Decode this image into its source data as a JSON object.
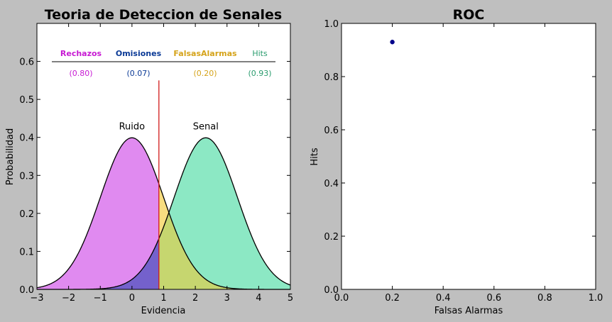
{
  "chart_data": [
    {
      "type": "area",
      "title": "Teoria de Deteccion de Senales",
      "xlabel": "Evidencia",
      "ylabel": "Probabilidad",
      "xlim": [
        -3,
        5
      ],
      "ylim": [
        0,
        0.7
      ],
      "xticks": [
        "−3",
        "−2",
        "−1",
        "0",
        "1",
        "2",
        "3",
        "4",
        "5"
      ],
      "yticks": [
        "0.0",
        "0.1",
        "0.2",
        "0.3",
        "0.4",
        "0.5",
        "0.6"
      ],
      "grid": false,
      "series": [
        {
          "name": "Ruido",
          "distribution": "normal",
          "mean": 0,
          "sd": 1,
          "color": "#e08af0"
        },
        {
          "name": "Senal",
          "distribution": "normal",
          "mean": 2.33,
          "sd": 1,
          "color": "#8ce8c4"
        }
      ],
      "criterion": {
        "x": 0.85,
        "ymax": 0.55,
        "color": "#d11a1a"
      },
      "overlap_colors": {
        "omisiones": "#7461cc",
        "falsas_alarmas": "#f8dd80",
        "hits_overlap": "#c6d66f"
      },
      "curve_labels": [
        {
          "text": "Ruido",
          "x": 0,
          "y": 0.43
        },
        {
          "text": "Senal",
          "x": 2.33,
          "y": 0.43
        }
      ],
      "table": {
        "headers": [
          {
            "label": "Rechazos",
            "color": "#c71ad3"
          },
          {
            "label": "Omisiones",
            "color": "#0b3a96"
          },
          {
            "label": "FalsasAlarmas",
            "color": "#d5a31a"
          },
          {
            "label": "Hits",
            "color": "#2a9c6e"
          }
        ],
        "values": [
          "(0.80)",
          "(0.07)",
          "(0.20)",
          "(0.93)"
        ]
      }
    },
    {
      "type": "scatter",
      "title": "ROC",
      "xlabel": "Falsas Alarmas",
      "ylabel": "Hits",
      "xlim": [
        0,
        1
      ],
      "ylim": [
        0,
        1
      ],
      "xticks": [
        "0.0",
        "0.2",
        "0.4",
        "0.6",
        "0.8",
        "1.0"
      ],
      "yticks": [
        "0.0",
        "0.2",
        "0.4",
        "0.6",
        "0.8",
        "1.0"
      ],
      "grid": false,
      "points": [
        {
          "x": 0.2,
          "y": 0.93
        }
      ],
      "point_color": "#00008b"
    }
  ]
}
